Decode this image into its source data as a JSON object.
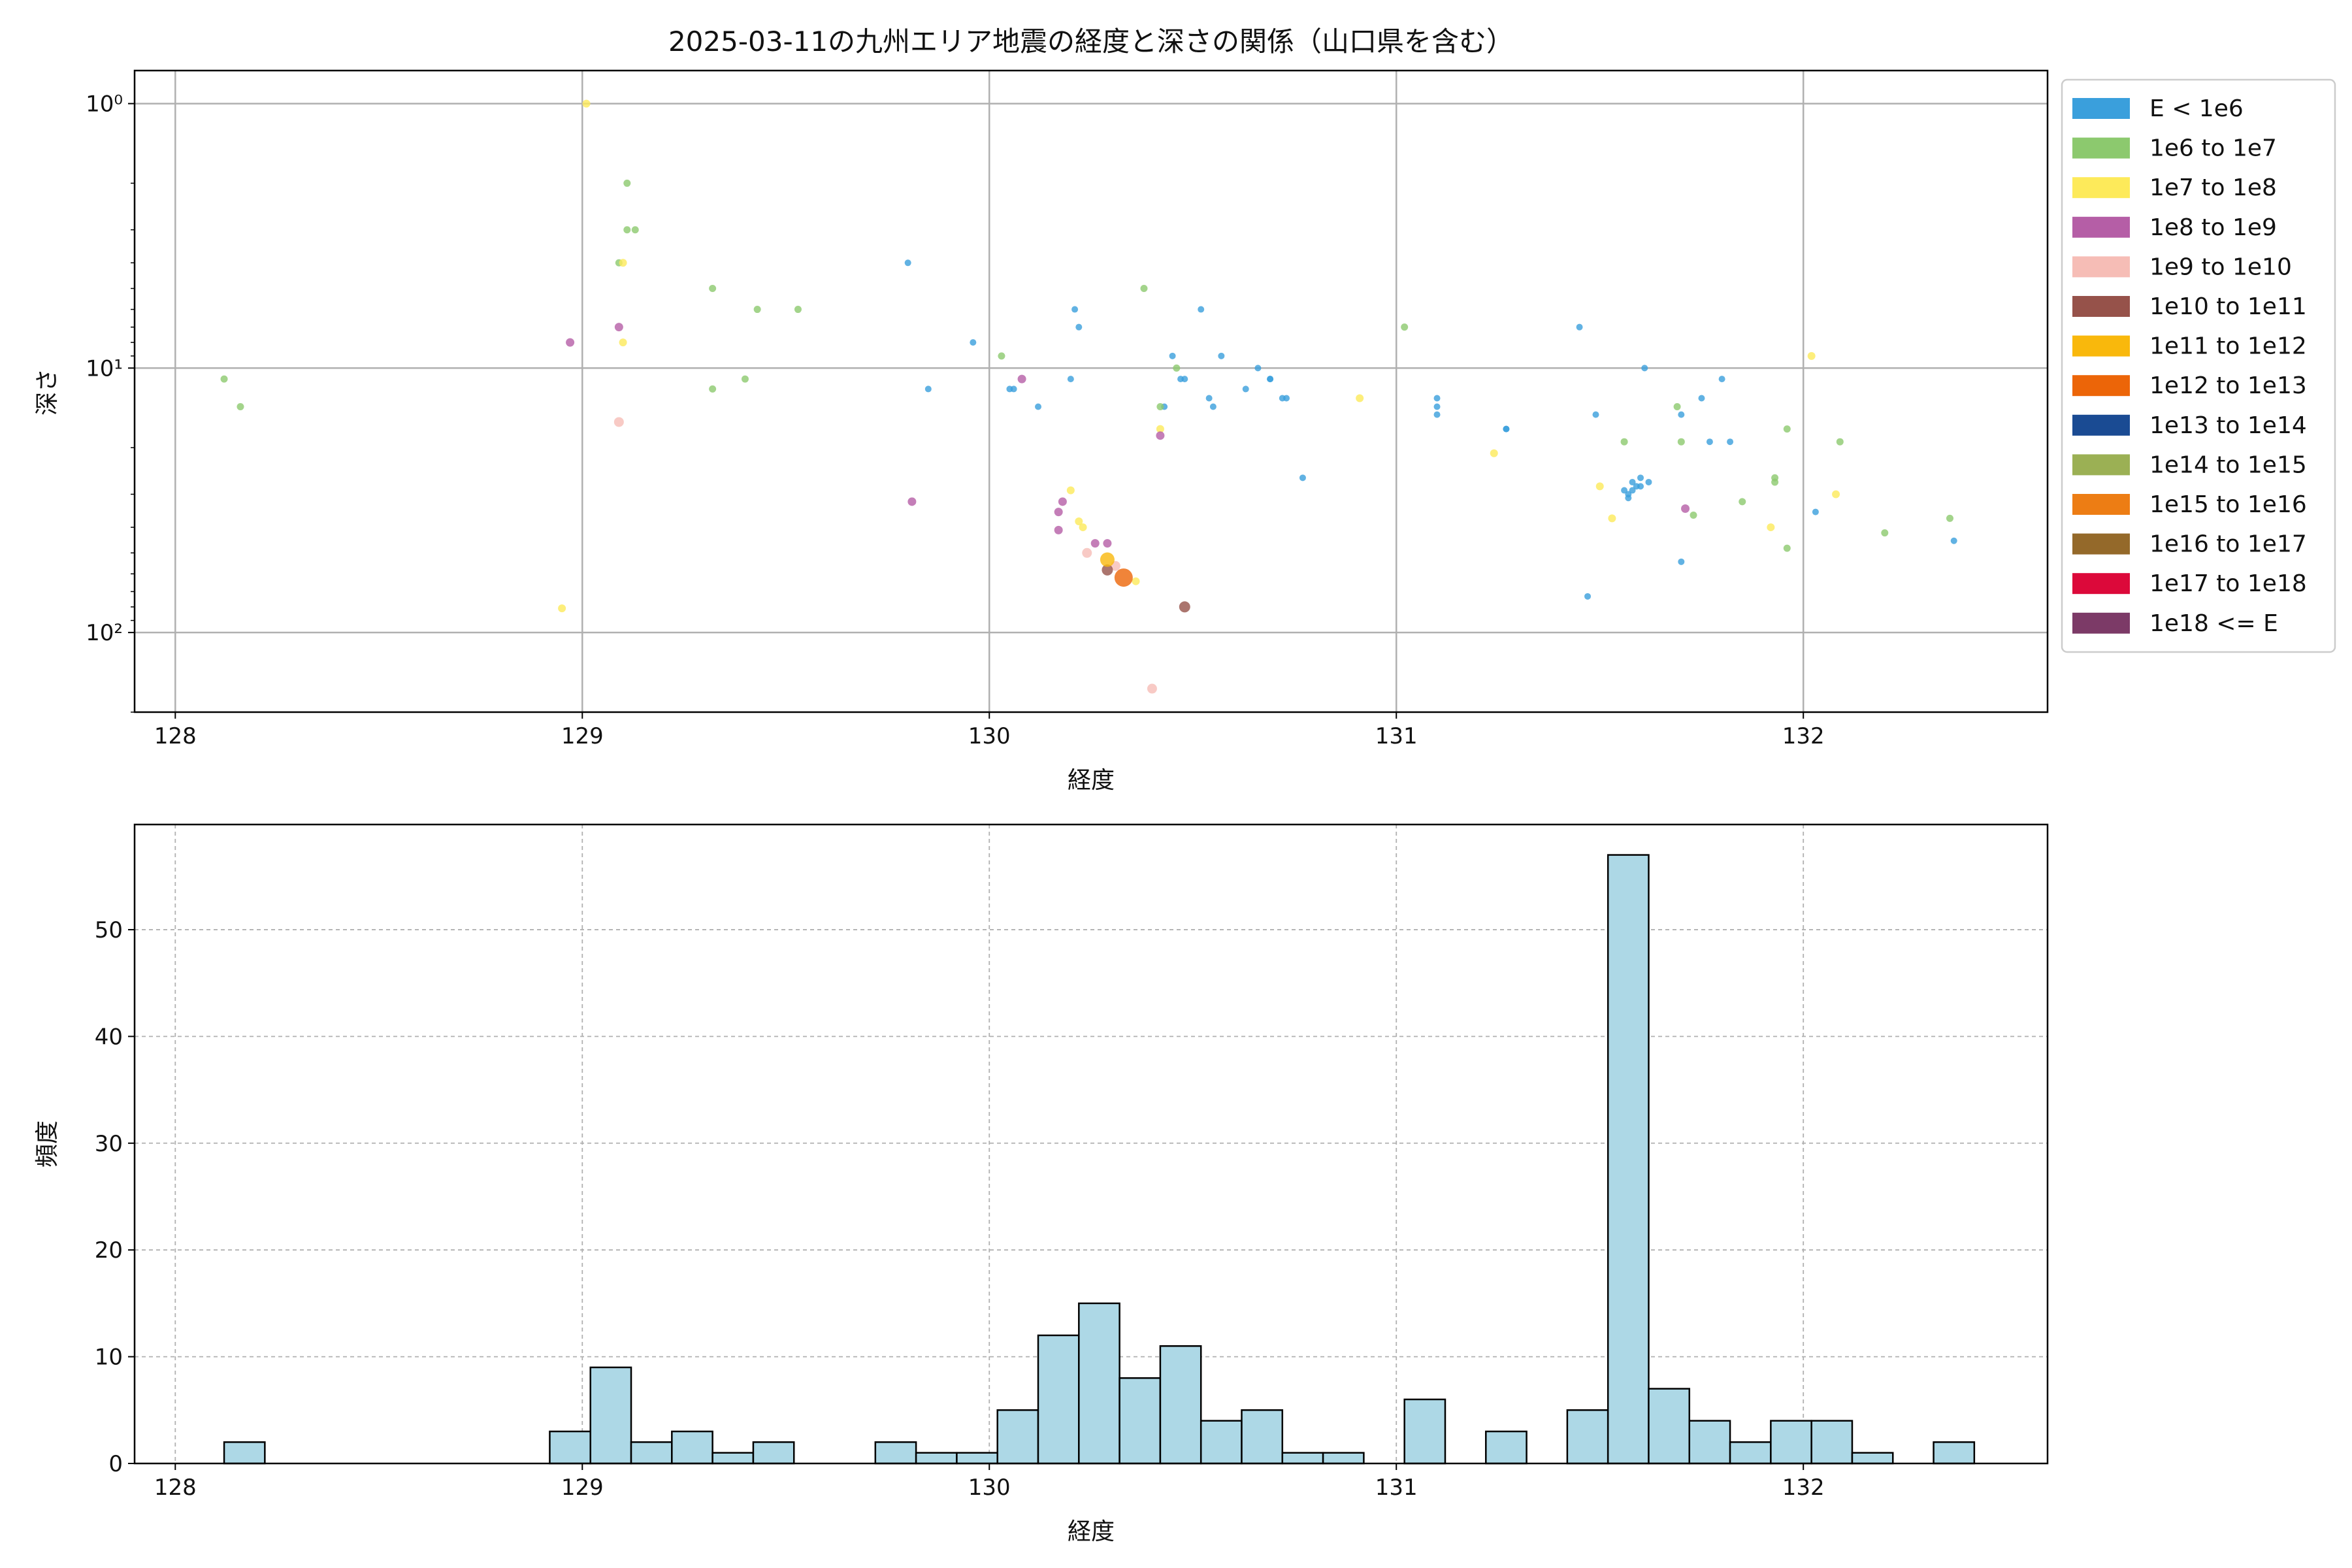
{
  "chart_data": [
    {
      "type": "scatter",
      "title": "2025-03-11の九州エリア地震の経度と深さの関係（山口県を含む）",
      "xlabel": "経度",
      "ylabel": "深さ",
      "xlim": [
        127.9,
        132.6
      ],
      "ylim": [
        200,
        0.75
      ],
      "y_scale": "log",
      "y_inverted": true,
      "grid": true,
      "legend_position": "outside-right",
      "x_ticks": [
        128,
        129,
        130,
        131,
        132
      ],
      "y_ticks": [
        {
          "value": 1,
          "label": "10⁰"
        },
        {
          "value": 10,
          "label": "10¹"
        },
        {
          "value": 100,
          "label": "10²"
        }
      ],
      "legend": [
        {
          "label": "E < 1e6",
          "color": "#3a9fdc"
        },
        {
          "label": "1e6 to 1e7",
          "color": "#8cc96e"
        },
        {
          "label": "1e7 to 1e8",
          "color": "#fdea5a"
        },
        {
          "label": "1e8 to 1e9",
          "color": "#b55ea6"
        },
        {
          "label": "1e9 to 1e10",
          "color": "#f6bdb6"
        },
        {
          "label": "1e10 to 1e11",
          "color": "#96524a"
        },
        {
          "label": "1e11 to 1e12",
          "color": "#f9b80c"
        },
        {
          "label": "1e12 to 1e13",
          "color": "#ec6508"
        },
        {
          "label": "1e13 to 1e14",
          "color": "#1a4b93"
        },
        {
          "label": "1e14 to 1e15",
          "color": "#9bb054"
        },
        {
          "label": "1e15 to 1e16",
          "color": "#ed7d14"
        },
        {
          "label": "1e16 to 1e17",
          "color": "#94692a"
        },
        {
          "label": "1e17 to 1e18",
          "color": "#dc093a"
        },
        {
          "label": "1e18 <= E",
          "color": "#7c3a67"
        }
      ],
      "series": [
        {
          "name": "E < 1e6",
          "points": [
            [
              129.8,
              4
            ],
            [
              129.85,
              12
            ],
            [
              129.96,
              8
            ],
            [
              130.05,
              12
            ],
            [
              130.06,
              12
            ],
            [
              130.12,
              14
            ],
            [
              130.2,
              11
            ],
            [
              130.21,
              6
            ],
            [
              130.22,
              7
            ],
            [
              130.43,
              14
            ],
            [
              130.45,
              9
            ],
            [
              130.47,
              11
            ],
            [
              130.48,
              11
            ],
            [
              130.52,
              6
            ],
            [
              130.54,
              13
            ],
            [
              130.55,
              14
            ],
            [
              130.57,
              9
            ],
            [
              130.63,
              12
            ],
            [
              130.66,
              10
            ],
            [
              130.69,
              11
            ],
            [
              130.69,
              11
            ],
            [
              130.72,
              13
            ],
            [
              130.73,
              13
            ],
            [
              130.77,
              26
            ],
            [
              131.1,
              13
            ],
            [
              131.1,
              14
            ],
            [
              131.1,
              15
            ],
            [
              131.27,
              17
            ],
            [
              131.27,
              17
            ],
            [
              131.45,
              7
            ],
            [
              131.47,
              73
            ],
            [
              131.49,
              15
            ],
            [
              131.56,
              29
            ],
            [
              131.57,
              30
            ],
            [
              131.58,
              27
            ],
            [
              131.59,
              28
            ],
            [
              131.6,
              26
            ],
            [
              131.57,
              31
            ],
            [
              131.58,
              29
            ],
            [
              131.6,
              28
            ],
            [
              131.61,
              10
            ],
            [
              131.62,
              27
            ],
            [
              131.7,
              54
            ],
            [
              131.7,
              15
            ],
            [
              131.75,
              13
            ],
            [
              131.77,
              19
            ],
            [
              131.8,
              11
            ],
            [
              131.82,
              19
            ],
            [
              132.03,
              35
            ],
            [
              132.37,
              45
            ]
          ]
        },
        {
          "name": "1e6 to 1e7",
          "points": [
            [
              128.12,
              11
            ],
            [
              128.16,
              14
            ],
            [
              129.09,
              4
            ],
            [
              129.11,
              2
            ],
            [
              129.11,
              3
            ],
            [
              129.13,
              3
            ],
            [
              129.32,
              5
            ],
            [
              129.32,
              12
            ],
            [
              129.4,
              11
            ],
            [
              129.43,
              6
            ],
            [
              129.53,
              6
            ],
            [
              130.03,
              9
            ],
            [
              130.38,
              5
            ],
            [
              130.42,
              14
            ],
            [
              130.46,
              10
            ],
            [
              131.02,
              7
            ],
            [
              131.56,
              19
            ],
            [
              131.69,
              14
            ],
            [
              131.7,
              19
            ],
            [
              131.73,
              36
            ],
            [
              131.85,
              32
            ],
            [
              131.93,
              26
            ],
            [
              131.93,
              27
            ],
            [
              131.96,
              17
            ],
            [
              131.96,
              48
            ],
            [
              132.09,
              19
            ],
            [
              132.2,
              42
            ],
            [
              132.36,
              37
            ]
          ]
        },
        {
          "name": "1e7 to 1e8",
          "points": [
            [
              128.95,
              81
            ],
            [
              129.01,
              1
            ],
            [
              129.1,
              4
            ],
            [
              129.1,
              8
            ],
            [
              130.2,
              29
            ],
            [
              130.22,
              38
            ],
            [
              130.23,
              40
            ],
            [
              130.36,
              64
            ],
            [
              130.42,
              17
            ],
            [
              130.91,
              13
            ],
            [
              131.24,
              21
            ],
            [
              131.5,
              28
            ],
            [
              131.53,
              37
            ],
            [
              131.92,
              40
            ],
            [
              132.02,
              9
            ],
            [
              132.08,
              30
            ]
          ]
        },
        {
          "name": "1e8 to 1e9",
          "points": [
            [
              128.97,
              8
            ],
            [
              129.09,
              7
            ],
            [
              129.81,
              32
            ],
            [
              130.08,
              11
            ],
            [
              130.17,
              35
            ],
            [
              130.17,
              41
            ],
            [
              130.18,
              32
            ],
            [
              130.26,
              46
            ],
            [
              130.29,
              46
            ],
            [
              130.42,
              18
            ],
            [
              131.71,
              34
            ]
          ]
        },
        {
          "name": "1e9 to 1e10",
          "points": [
            [
              129.09,
              16
            ],
            [
              130.24,
              50
            ],
            [
              130.31,
              56
            ],
            [
              130.4,
              163
            ]
          ]
        },
        {
          "name": "1e10 to 1e11",
          "points": [
            [
              130.29,
              58
            ],
            [
              130.48,
              80
            ]
          ]
        },
        {
          "name": "1e11 to 1e12",
          "points": [
            [
              130.29,
              53
            ]
          ]
        },
        {
          "name": "1e12 to 1e13",
          "points": [
            [
              130.33,
              62
            ]
          ]
        }
      ]
    },
    {
      "type": "bar",
      "xlabel": "経度",
      "ylabel": "頻度",
      "xlim": [
        127.9,
        132.6
      ],
      "ylim": [
        0,
        59.85
      ],
      "grid": true,
      "x_ticks": [
        128,
        129,
        130,
        131,
        132
      ],
      "y_ticks": [
        0,
        10,
        20,
        30,
        40,
        50
      ],
      "bin_start": 128.12,
      "bin_width": 0.1,
      "values": [
        2,
        0,
        0,
        0,
        0,
        0,
        0,
        0,
        3,
        9,
        2,
        3,
        1,
        2,
        0,
        0,
        2,
        1,
        1,
        5,
        12,
        15,
        8,
        11,
        4,
        5,
        1,
        1,
        0,
        6,
        0,
        3,
        0,
        5,
        57,
        7,
        4,
        2,
        4,
        4,
        1,
        0,
        2
      ]
    }
  ]
}
